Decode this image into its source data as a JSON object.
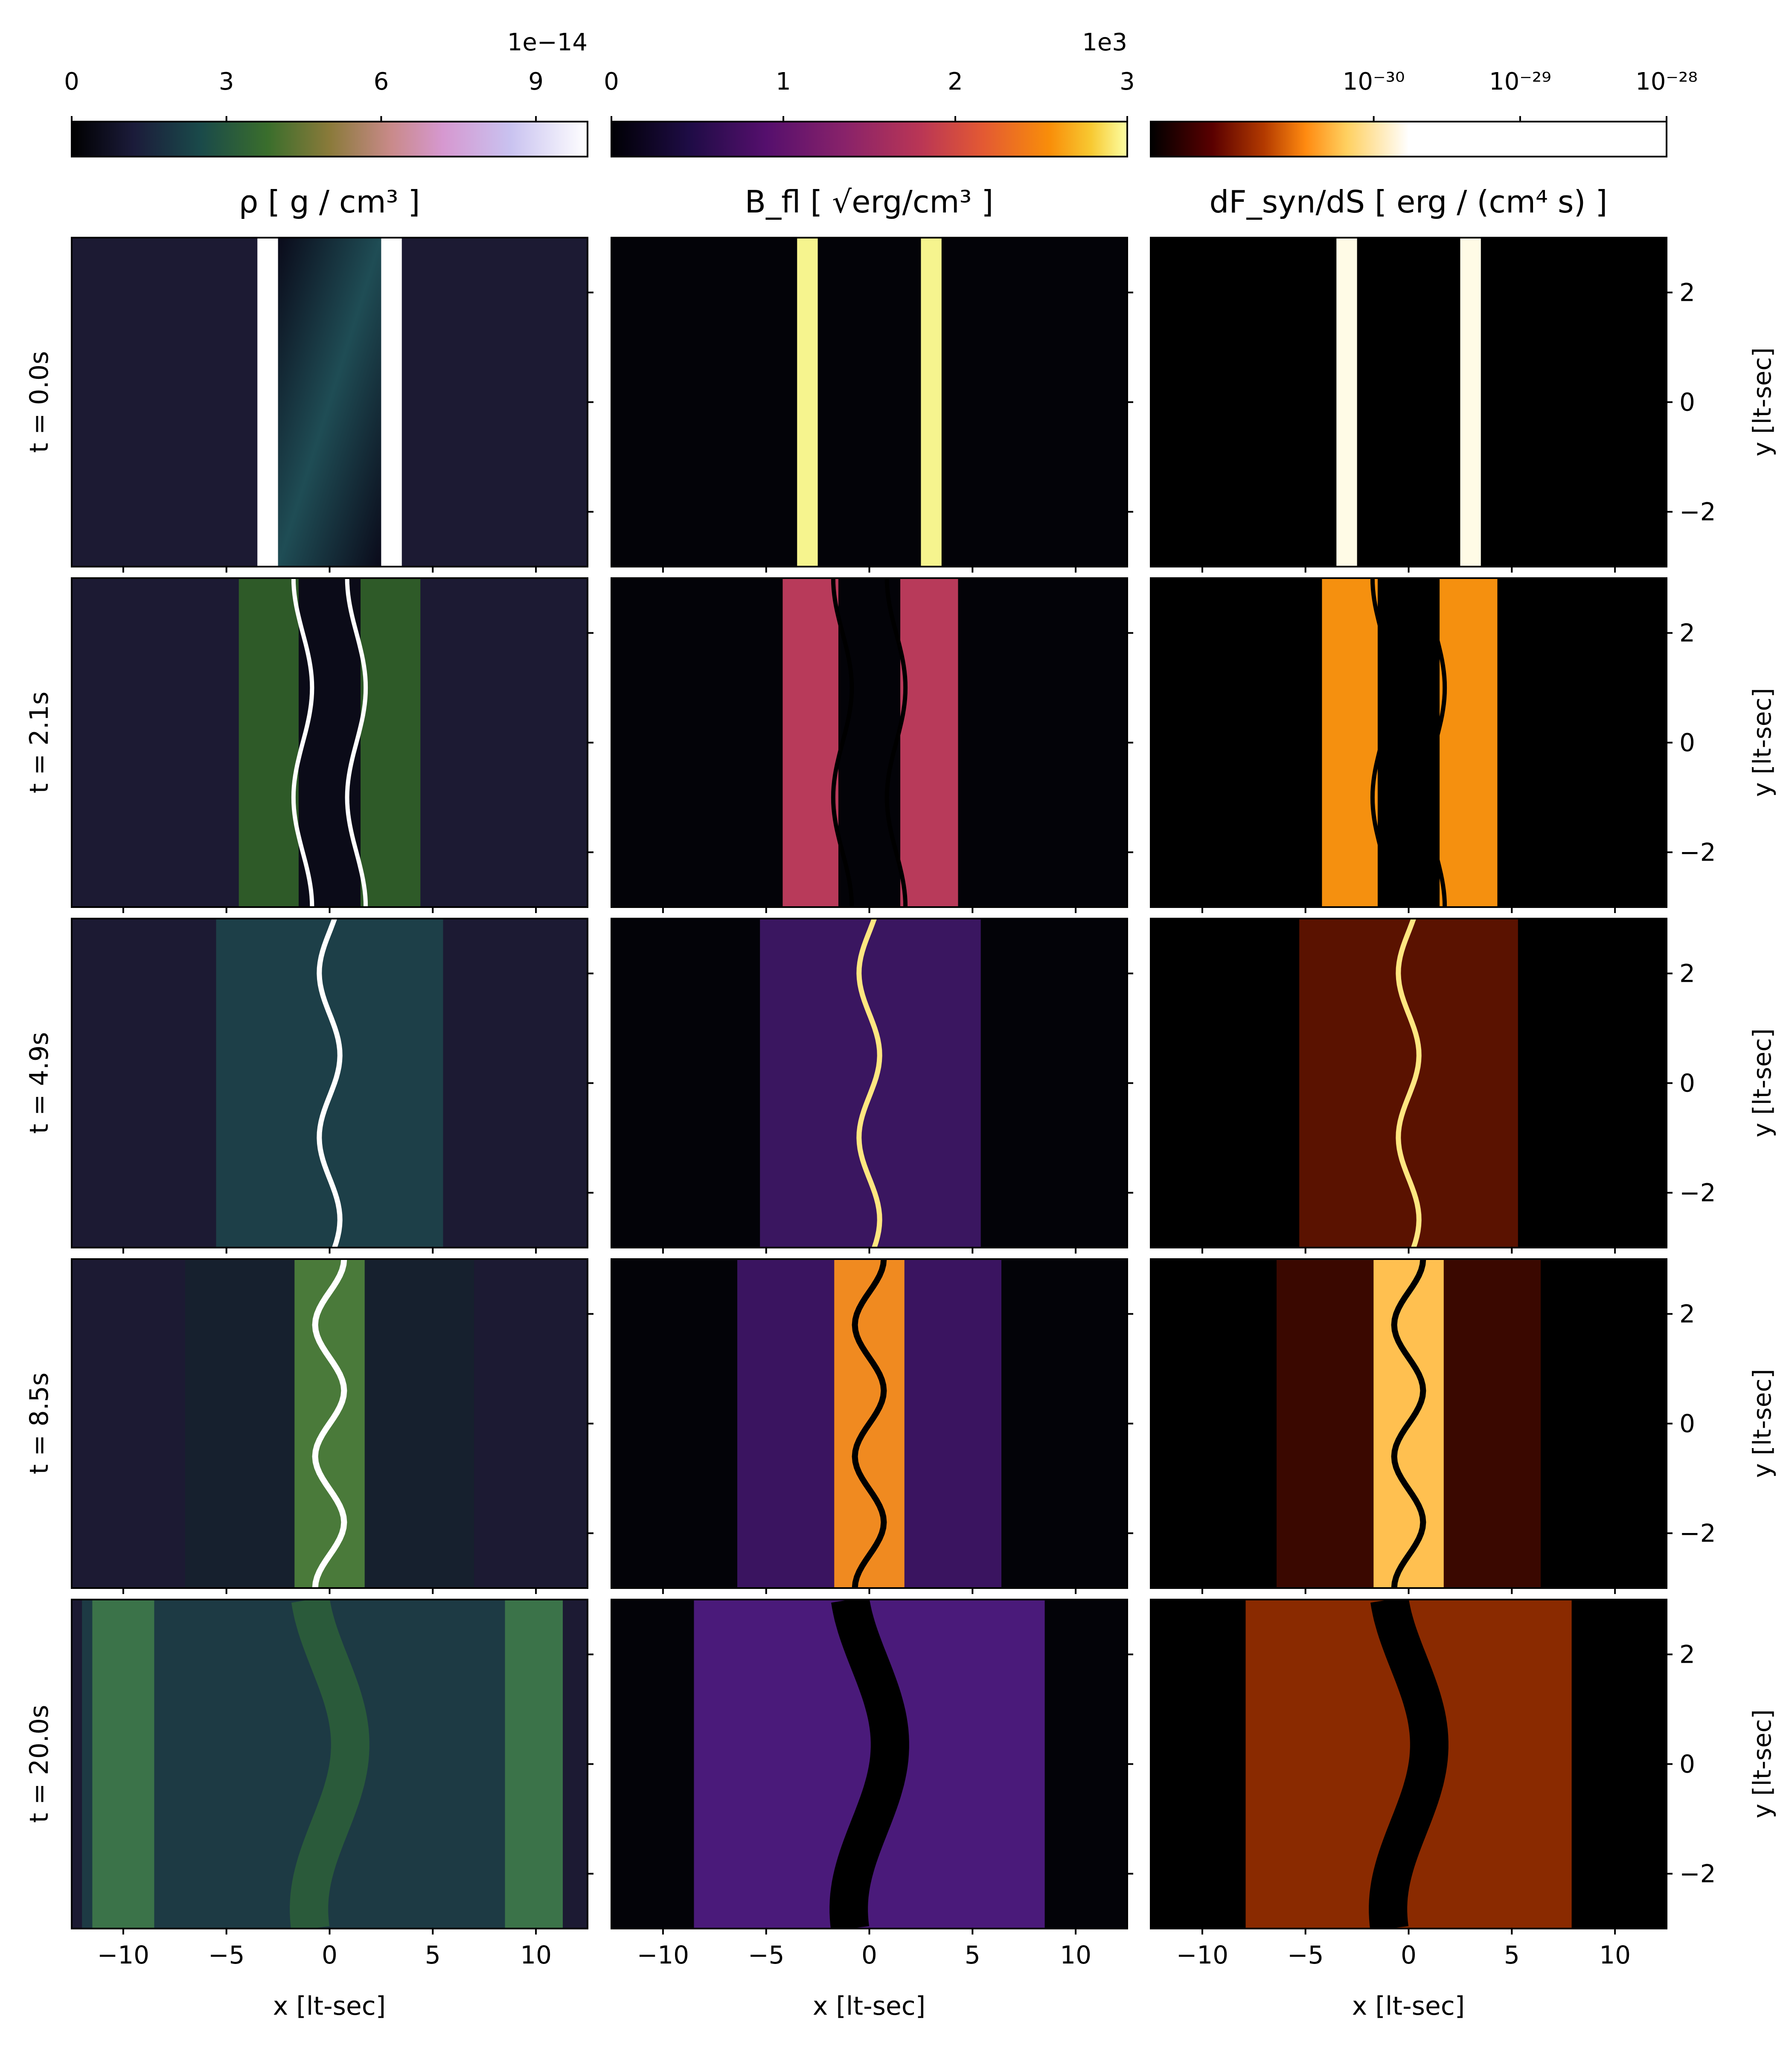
{
  "figure": {
    "columns": [
      {
        "id": "rho",
        "title": "ρ [ g / cm³ ]",
        "colormap": "cubehelix",
        "scale": "linear",
        "multiplier": "1e−14",
        "ticks": [
          {
            "value": 0,
            "label": "0"
          },
          {
            "value": 3,
            "label": "3"
          },
          {
            "value": 6,
            "label": "6"
          },
          {
            "value": 9,
            "label": "9"
          }
        ],
        "range": [
          0,
          10
        ]
      },
      {
        "id": "bfl",
        "title": "B_fl [ √erg/cm³ ]",
        "colormap": "inferno",
        "scale": "linear",
        "multiplier": "1e3",
        "ticks": [
          {
            "value": 0,
            "label": "0"
          },
          {
            "value": 1,
            "label": "1"
          },
          {
            "value": 2,
            "label": "2"
          },
          {
            "value": 3,
            "label": "3"
          }
        ],
        "range": [
          0,
          3
        ]
      },
      {
        "id": "dfsyn",
        "title": "dF_syn/dS [ erg / (cm⁴ s) ]",
        "colormap": "afmhot",
        "scale": "log",
        "multiplier": "",
        "ticks": [
          {
            "value": 1e-30,
            "label": "10⁻³⁰"
          },
          {
            "value": 1e-29,
            "label": "10⁻²⁹"
          },
          {
            "value": 1e-28,
            "label": "10⁻²⁸"
          }
        ],
        "range": [
          3e-32,
          1e-28
        ]
      }
    ],
    "rows": [
      {
        "time_label": "t = 0.0s"
      },
      {
        "time_label": "t = 2.1s"
      },
      {
        "time_label": "t = 4.9s"
      },
      {
        "time_label": "t = 8.5s"
      },
      {
        "time_label": "t = 20.0s"
      }
    ],
    "x_axis": {
      "label": "x [lt-sec]",
      "range": [
        -12.5,
        12.5
      ],
      "ticks": [
        {
          "value": -10,
          "label": "−10"
        },
        {
          "value": -5,
          "label": "−5"
        },
        {
          "value": 0,
          "label": "0"
        },
        {
          "value": 5,
          "label": "5"
        },
        {
          "value": 10,
          "label": "10"
        }
      ]
    },
    "y_axis": {
      "label": "y [lt-sec]",
      "range": [
        -3,
        3
      ],
      "ticks": [
        {
          "value": 2,
          "label": "2"
        },
        {
          "value": 0,
          "label": "0"
        },
        {
          "value": -2,
          "label": "−2"
        }
      ]
    }
  },
  "colors": {
    "rho_background": "#1c1a33",
    "bfl_background": "#030308",
    "dfsyn_background": "#000000",
    "frame": "#000000"
  }
}
